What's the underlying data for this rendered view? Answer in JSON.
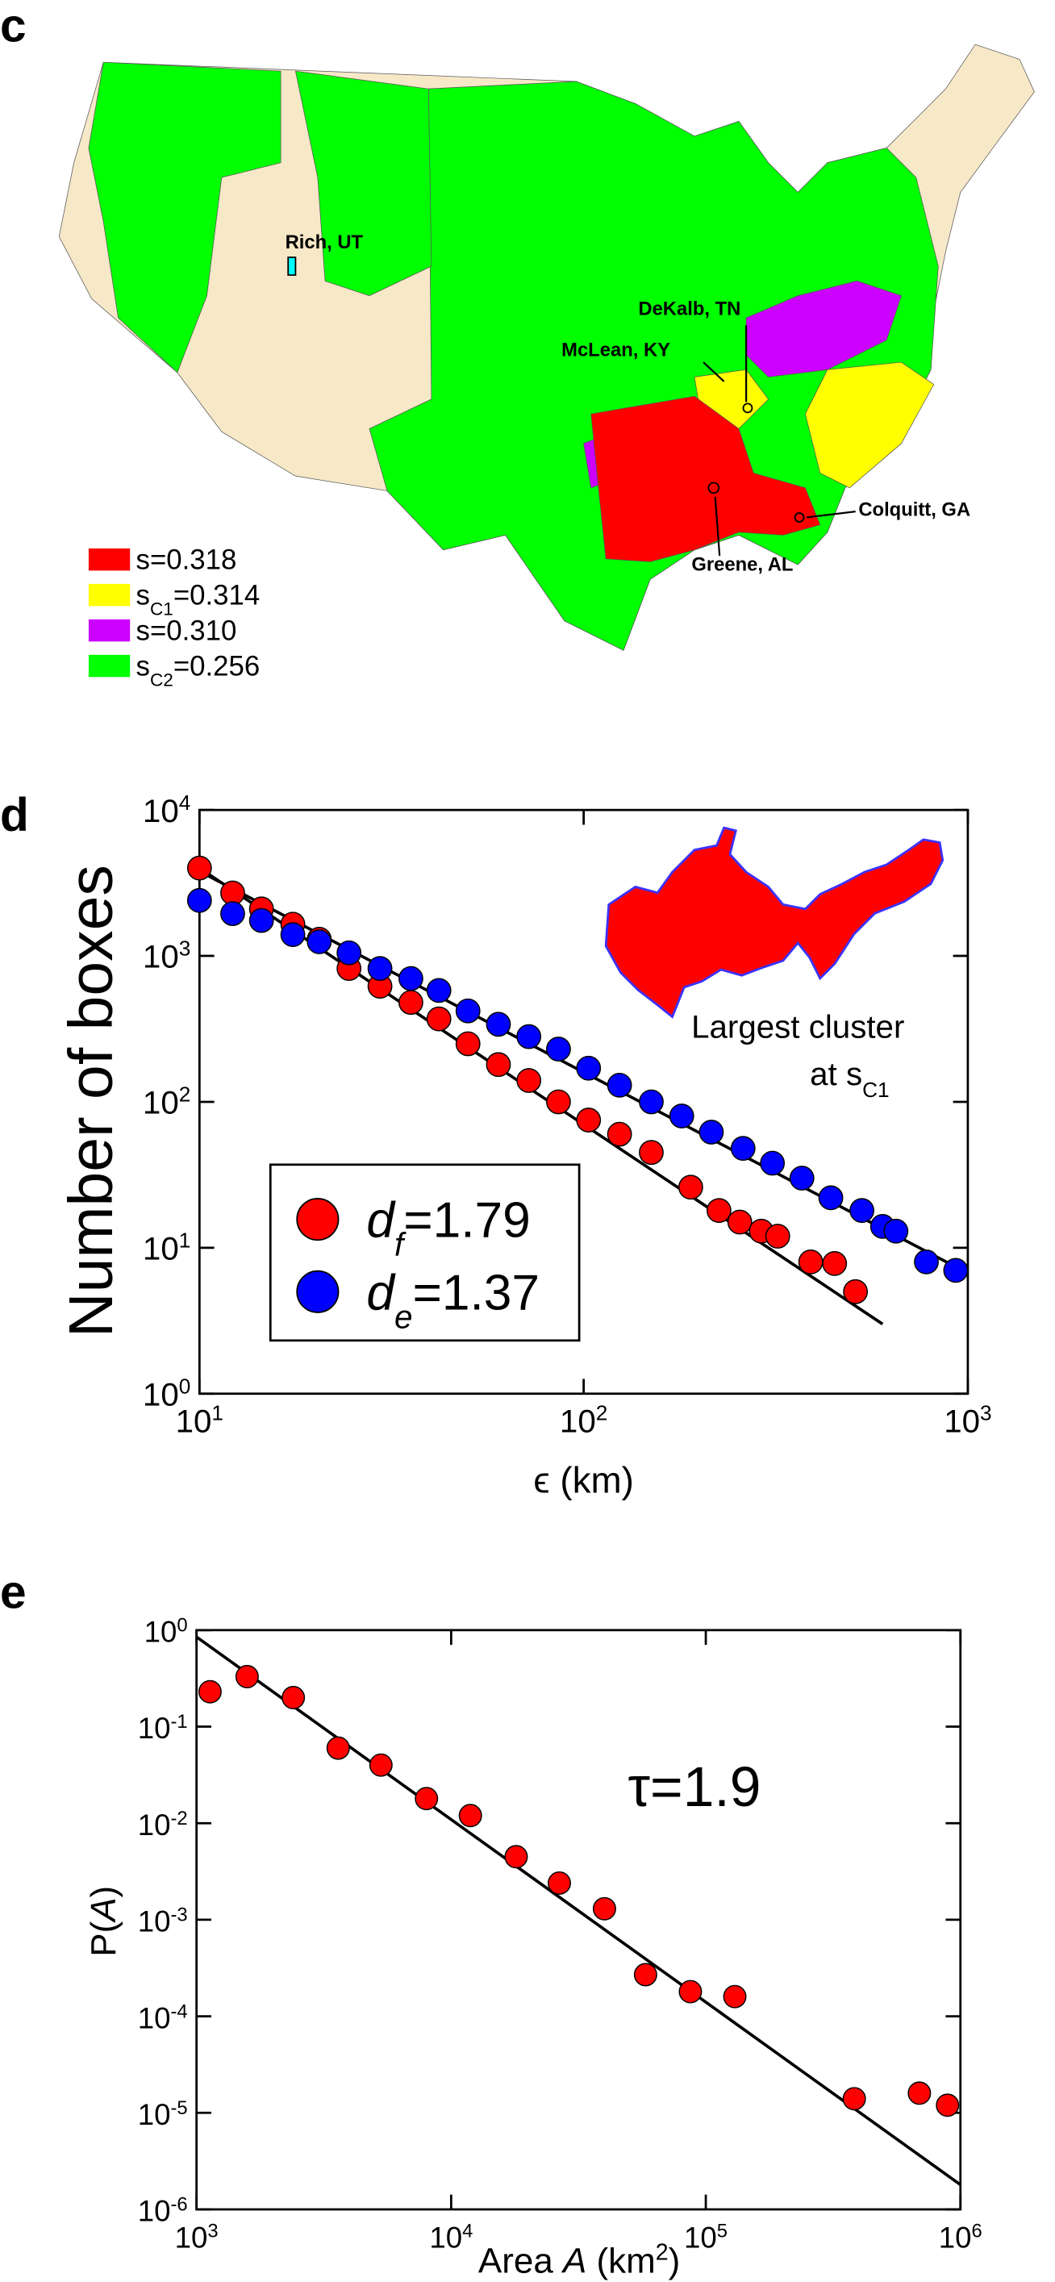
{
  "chart_data": [
    {
      "type": "map",
      "panel": "c",
      "legend": [
        {
          "parts": [
            "s",
            "=0.318"
          ],
          "color": "#ff0000"
        },
        {
          "parts": [
            "s",
            "C1",
            "=0.314"
          ],
          "color": "#ffff00"
        },
        {
          "parts": [
            "s",
            "=0.310"
          ],
          "color": "#cc00ff"
        },
        {
          "parts": [
            "s",
            "C2",
            "=0.256"
          ],
          "color": "#00ff00"
        }
      ],
      "annotations": [
        "Rich, UT",
        "DeKalb, TN",
        "McLean, KY",
        "Colquitt, GA",
        "Greene, AL"
      ]
    },
    {
      "type": "scatter",
      "panel": "d",
      "log_x": true,
      "log_y": true,
      "ylabel": [
        "Number of boxes"
      ],
      "xlabel": [
        "ϵ (km)"
      ],
      "xlim": [
        10,
        1000
      ],
      "ylim": [
        1,
        10000
      ],
      "xticks": [
        {
          "value": 10,
          "label": "10",
          "exponent": "1"
        },
        {
          "value": 100,
          "label": "10",
          "exponent": "2"
        },
        {
          "value": 1000,
          "label": "10",
          "exponent": "3"
        }
      ],
      "yticks": [
        {
          "value": 1,
          "label": "10",
          "exponent": "0"
        },
        {
          "value": 10,
          "label": "10",
          "exponent": "1"
        },
        {
          "value": 100,
          "label": "10",
          "exponent": "2"
        },
        {
          "value": 1000,
          "label": "10",
          "exponent": "3"
        },
        {
          "value": 10000,
          "label": "10",
          "exponent": "4"
        }
      ],
      "series": [
        {
          "name": [
            "d",
            "f",
            "=1.79"
          ],
          "color": "#ff0000",
          "x": [
            10,
            12.2,
            14.5,
            17.5,
            20.5,
            24.5,
            29.5,
            35.5,
            42,
            50,
            60,
            72,
            86,
            103,
            124,
            150,
            190,
            225,
            255,
            290,
            320,
            390,
            450,
            510
          ],
          "y": [
            4000,
            2700,
            2100,
            1650,
            1300,
            820,
            620,
            480,
            370,
            250,
            180,
            140,
            100,
            75,
            60,
            45,
            26,
            18,
            15,
            13,
            12,
            8,
            7.8,
            5
          ]
        },
        {
          "name": [
            "d",
            "e",
            "=1.37"
          ],
          "color": "#0000ff",
          "x": [
            10,
            12.2,
            14.5,
            17.5,
            20.5,
            24.5,
            29.5,
            35.5,
            42,
            50,
            60,
            72,
            86,
            103,
            124,
            150,
            180,
            215,
            260,
            310,
            370,
            440,
            530,
            600,
            650,
            780,
            930
          ],
          "y": [
            2400,
            1950,
            1750,
            1400,
            1250,
            1050,
            820,
            700,
            580,
            420,
            340,
            280,
            230,
            170,
            130,
            100,
            80,
            62,
            48,
            38,
            30,
            22,
            18,
            14,
            13,
            8,
            7
          ]
        }
      ],
      "fits": [
        {
          "x": [
            10,
            600
          ],
          "y": [
            4000,
            3
          ]
        },
        {
          "x": [
            10,
            1000
          ],
          "y": [
            3800,
            6.7
          ]
        }
      ],
      "annotations": [
        [
          "Largest cluster"
        ],
        [
          "at s",
          "C1"
        ]
      ]
    },
    {
      "type": "scatter",
      "panel": "e",
      "log_x": true,
      "log_y": true,
      "ylabel": [
        "P(",
        "A",
        ")"
      ],
      "xlabel": [
        "Area ",
        "A",
        " (km",
        "2",
        ")"
      ],
      "xlim": [
        1000,
        1000000
      ],
      "ylim": [
        1e-06,
        1
      ],
      "xticks": [
        {
          "value": 1000,
          "label": "10",
          "exponent": "3"
        },
        {
          "value": 10000,
          "label": "10",
          "exponent": "4"
        },
        {
          "value": 100000,
          "label": "10",
          "exponent": "5"
        },
        {
          "value": 1000000,
          "label": "10",
          "exponent": "6"
        }
      ],
      "yticks": [
        {
          "value": 1e-06,
          "label": "10",
          "exponent": "-6"
        },
        {
          "value": 1e-05,
          "label": "10",
          "exponent": "-5"
        },
        {
          "value": 0.0001,
          "label": "10",
          "exponent": "-4"
        },
        {
          "value": 0.001,
          "label": "10",
          "exponent": "-3"
        },
        {
          "value": 0.01,
          "label": "10",
          "exponent": "-2"
        },
        {
          "value": 0.1,
          "label": "10",
          "exponent": "-1"
        },
        {
          "value": 1,
          "label": "10",
          "exponent": "0"
        }
      ],
      "series": [
        {
          "color": "#ff0000",
          "x": [
            1130,
            1580,
            2400,
            3600,
            5300,
            8000,
            11900,
            18000,
            26600,
            40000,
            58000,
            87000,
            130000,
            383000,
            690000,
            890000
          ],
          "y": [
            0.23,
            0.33,
            0.2,
            0.06,
            0.04,
            0.018,
            0.012,
            0.0045,
            0.0024,
            0.0013,
            0.00027,
            0.00018,
            0.00016,
            1.4e-05,
            1.6e-05,
            1.2e-05
          ]
        }
      ],
      "fits": [
        {
          "x": [
            1000,
            1000000
          ],
          "y": [
            0.85,
            1.8e-06
          ]
        }
      ],
      "annotations": [
        [
          "τ=1.9"
        ]
      ]
    }
  ]
}
